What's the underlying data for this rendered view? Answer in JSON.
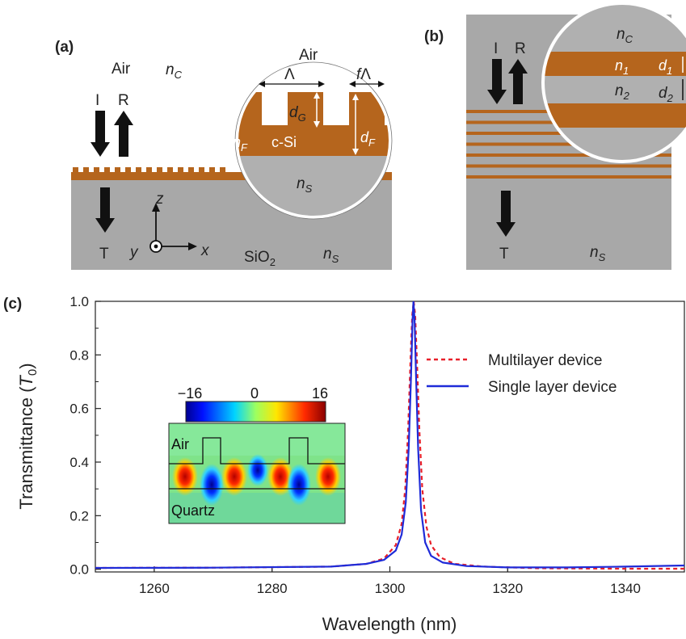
{
  "diagram_a": {
    "panel_label": "(a)",
    "air": "Air",
    "n_c": "n",
    "n_c_sub": "C",
    "incident": "I",
    "reflected": "R",
    "transmitted": "T",
    "axis_z": "z",
    "axis_y": "y",
    "axis_x": "x",
    "substrate": "SiO",
    "substrate_sub": "2",
    "n_s": "n",
    "n_s_sub": "S",
    "zoom": {
      "air": "Air",
      "period": "Λ",
      "fill_f": "f",
      "fill_lambda": "Λ",
      "d_g": "d",
      "d_g_sub": "G",
      "n_f": "n",
      "n_f_sub": "F",
      "film": "c-Si",
      "d_f": "d",
      "d_f_sub": "F",
      "n_s": "n",
      "n_s_sub": "S"
    }
  },
  "diagram_b": {
    "panel_label": "(b)",
    "incident": "I",
    "reflected": "R",
    "transmitted": "T",
    "n_s": "n",
    "n_s_sub": "S",
    "zoom": {
      "n_c": "n",
      "n_c_sub": "C",
      "n_1": "n",
      "n_1_sub": "1",
      "n_2": "n",
      "n_2_sub": "2",
      "d_1": "d",
      "d_1_sub": "1",
      "d_2": "d",
      "d_2_sub": "2"
    }
  },
  "colors": {
    "silicon": "#B5651D",
    "substrate": "#A8A8A8",
    "zoom_fill": "#B0B0B0",
    "multilayer": "#E8202A",
    "single_layer": "#1F2BD8"
  },
  "chart_data": {
    "panel_label": "(c)",
    "type": "line",
    "xlabel": "Wavelength (nm)",
    "ylabel_main": "Transmittance (",
    "ylabel_sym": "T",
    "ylabel_sub": "0",
    "ylabel_end": ")",
    "xlim": [
      1250,
      1350
    ],
    "ylim": [
      -0.01,
      1.0
    ],
    "xticks": [
      1260,
      1280,
      1300,
      1320,
      1340
    ],
    "yticks": [
      0.0,
      0.2,
      0.4,
      0.6,
      0.8,
      1.0
    ],
    "ytick_labels": [
      "0.0",
      "0.2",
      "0.4",
      "0.6",
      "0.8",
      "1.0"
    ],
    "series": [
      {
        "name": "Multilayer device",
        "style": "dashed",
        "x": [
          1250,
          1270,
          1290,
          1296,
          1299,
          1301,
          1302,
          1302.6,
          1303.1,
          1303.5,
          1303.8,
          1304.05,
          1304.3,
          1304.6,
          1305.0,
          1305.5,
          1306.2,
          1307.0,
          1308.5,
          1311,
          1316,
          1325,
          1340,
          1350
        ],
        "y": [
          0.005,
          0.006,
          0.01,
          0.02,
          0.04,
          0.09,
          0.17,
          0.3,
          0.52,
          0.78,
          0.95,
          1.0,
          0.95,
          0.78,
          0.52,
          0.3,
          0.16,
          0.09,
          0.045,
          0.02,
          0.01,
          0.004,
          0.002,
          0.002
        ]
      },
      {
        "name": "Single layer device",
        "style": "solid",
        "x": [
          1250,
          1270,
          1290,
          1296,
          1299,
          1301,
          1302,
          1302.7,
          1303.2,
          1303.6,
          1303.85,
          1304.0,
          1304.2,
          1304.45,
          1304.8,
          1305.3,
          1306.0,
          1307.0,
          1309,
          1313,
          1320,
          1330,
          1340,
          1350
        ],
        "y": [
          0.005,
          0.006,
          0.01,
          0.02,
          0.035,
          0.07,
          0.13,
          0.25,
          0.45,
          0.72,
          0.93,
          1.0,
          0.93,
          0.72,
          0.45,
          0.22,
          0.1,
          0.05,
          0.025,
          0.012,
          0.007,
          0.007,
          0.01,
          0.014
        ]
      }
    ],
    "legend_position": "right",
    "inset": {
      "colorbar_ticks": [
        "−16",
        "0",
        "16"
      ],
      "top_label": "Air",
      "bottom_label": "Quartz"
    }
  }
}
